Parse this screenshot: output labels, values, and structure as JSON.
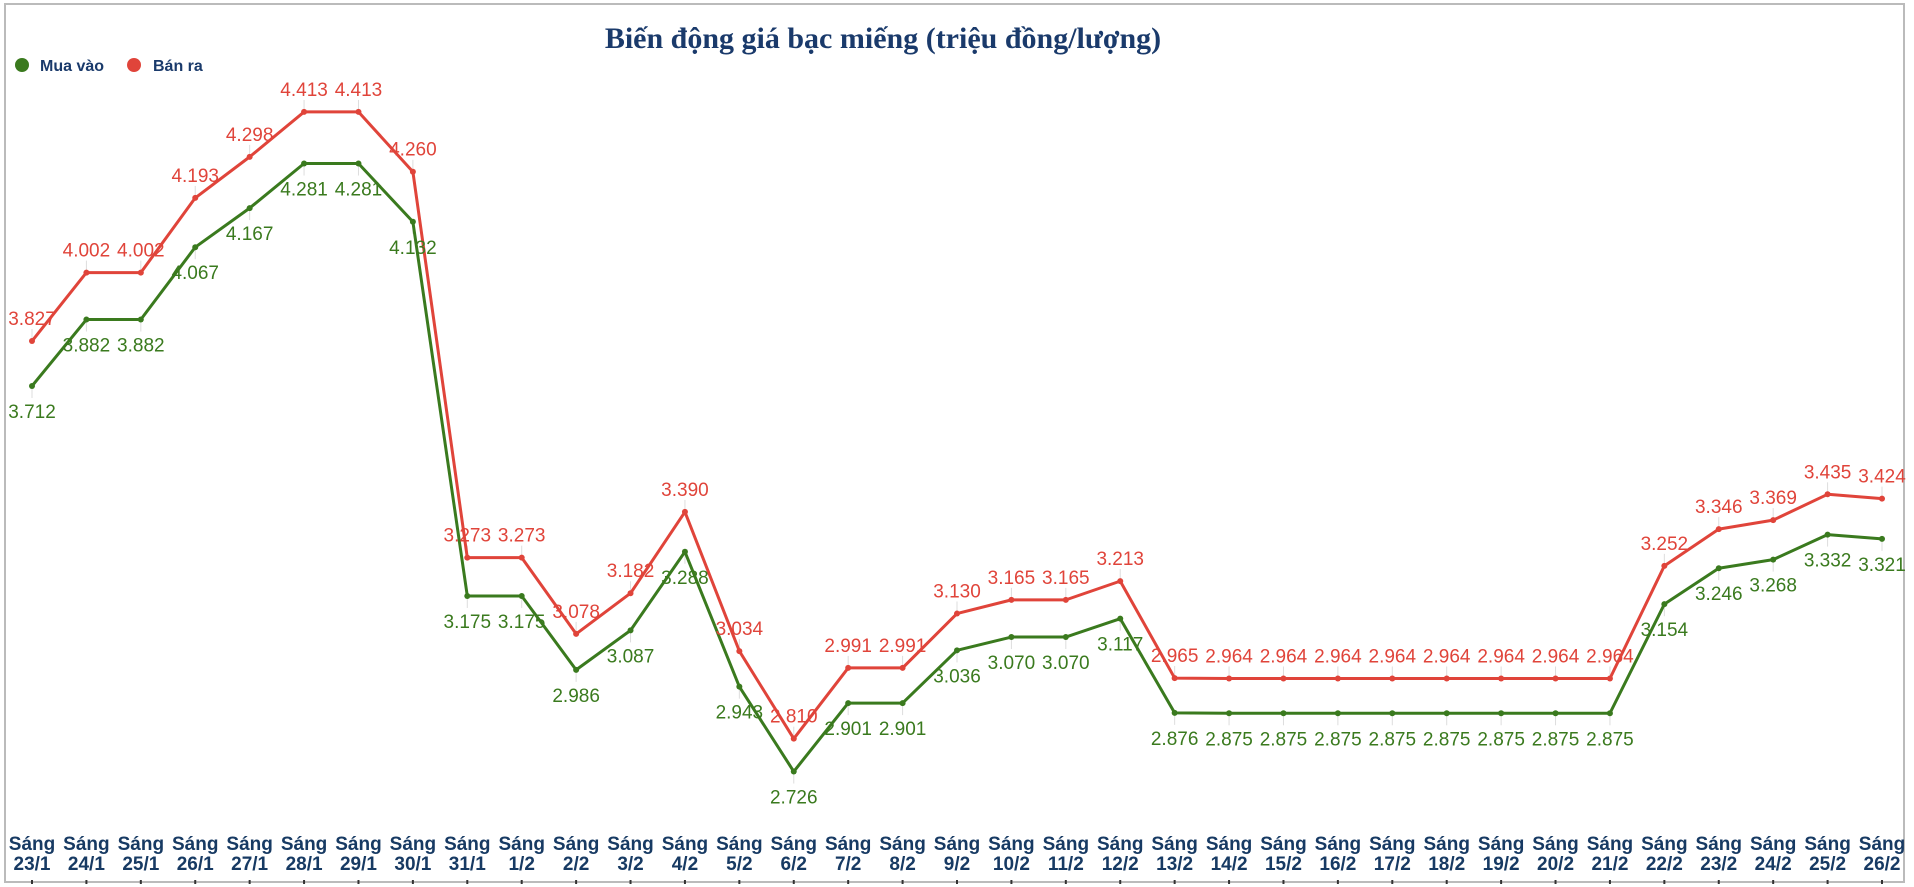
{
  "chart_data": {
    "type": "line",
    "title": "Biến động giá bạc miếng (triệu đồng/lượng)",
    "xlabel": "",
    "ylabel": "",
    "legend_position": "top-left",
    "grid": false,
    "categories": [
      "Sáng 23/1",
      "Sáng 24/1",
      "Sáng 25/1",
      "Sáng 26/1",
      "Sáng 27/1",
      "Sáng 28/1",
      "Sáng 29/1",
      "Sáng 30/1",
      "Sáng 31/1",
      "Sáng 1/2",
      "Sáng 2/2",
      "Sáng 3/2",
      "Sáng 4/2",
      "Sáng 5/2",
      "Sáng 6/2",
      "Sáng 7/2",
      "Sáng 8/2",
      "Sáng 9/2",
      "Sáng 10/2",
      "Sáng 11/2",
      "Sáng 12/2",
      "Sáng 13/2",
      "Sáng 14/2",
      "Sáng 15/2",
      "Sáng 16/2",
      "Sáng 17/2",
      "Sáng 18/2",
      "Sáng 19/2",
      "Sáng 20/2",
      "Sáng 21/2",
      "Sáng 22/2",
      "Sáng 23/2",
      "Sáng 24/2",
      "Sáng 25/2",
      "Sáng 26/2"
    ],
    "series": [
      {
        "name": "Mua vào",
        "color": "#3a7a1e",
        "values": [
          3.712,
          3.882,
          3.882,
          4.067,
          4.167,
          4.281,
          4.281,
          4.132,
          3.175,
          3.175,
          2.986,
          3.087,
          3.288,
          2.943,
          2.726,
          2.901,
          2.901,
          3.036,
          3.07,
          3.07,
          3.117,
          2.876,
          2.875,
          2.875,
          2.875,
          2.875,
          2.875,
          2.875,
          2.875,
          2.875,
          3.154,
          3.246,
          3.268,
          3.332,
          3.321
        ]
      },
      {
        "name": "Bán ra",
        "color": "#e0443a",
        "values": [
          3.827,
          4.002,
          4.002,
          4.193,
          4.298,
          4.413,
          4.413,
          4.26,
          3.273,
          3.273,
          3.078,
          3.182,
          3.39,
          3.034,
          2.81,
          2.991,
          2.991,
          3.13,
          3.165,
          3.165,
          3.213,
          2.965,
          2.964,
          2.964,
          2.964,
          2.964,
          2.964,
          2.964,
          2.964,
          2.964,
          3.252,
          3.346,
          3.369,
          3.435,
          3.424
        ]
      }
    ]
  }
}
